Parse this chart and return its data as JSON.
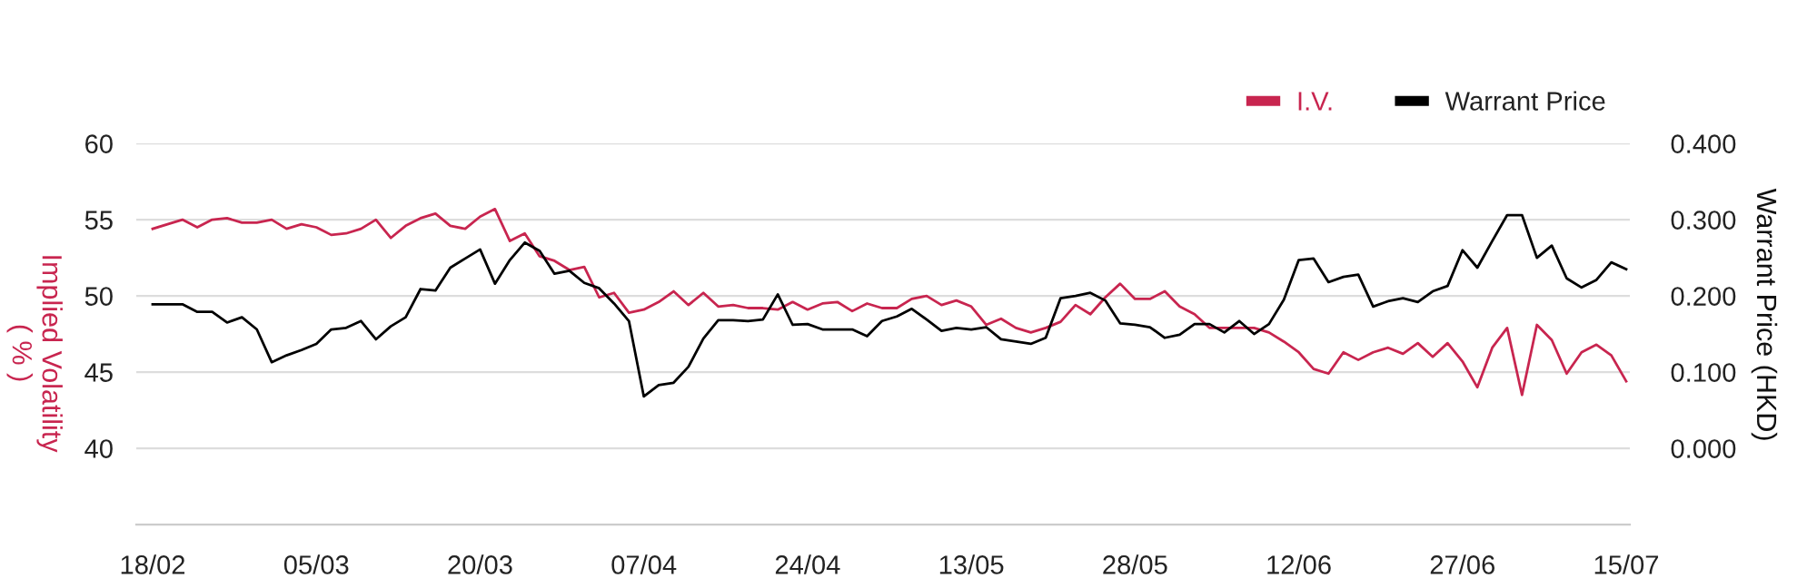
{
  "chart_data": {
    "type": "line",
    "categories": [
      "18/02",
      null,
      null,
      null,
      null,
      null,
      null,
      null,
      null,
      null,
      null,
      "05/03",
      null,
      null,
      null,
      null,
      null,
      null,
      null,
      null,
      null,
      null,
      "20/03",
      null,
      null,
      null,
      null,
      null,
      null,
      null,
      null,
      null,
      null,
      "07/04",
      null,
      null,
      null,
      null,
      null,
      null,
      null,
      null,
      null,
      null,
      "24/04",
      null,
      null,
      null,
      null,
      null,
      null,
      null,
      null,
      null,
      null,
      "13/05",
      null,
      null,
      null,
      null,
      null,
      null,
      null,
      null,
      null,
      null,
      "28/05",
      null,
      null,
      null,
      null,
      null,
      null,
      null,
      null,
      null,
      null,
      "12/06",
      null,
      null,
      null,
      null,
      null,
      null,
      null,
      null,
      null,
      null,
      "27/06",
      null,
      null,
      null,
      null,
      null,
      null,
      null,
      null,
      null,
      null,
      "15/07"
    ],
    "ylabel": "Implied Volatility\n( % )",
    "y2label": "Warrant Price (HKD)",
    "ylim": [
      35,
      60
    ],
    "yticks": [
      40,
      45,
      50,
      55,
      60
    ],
    "y2lim": [
      -0.1,
      0.4
    ],
    "y2ticks": [
      {
        "value": 0,
        "label": "0.000"
      },
      {
        "value": 0.1,
        "label": "0.100"
      },
      {
        "value": 0.2,
        "label": "0.200"
      },
      {
        "value": 0.3,
        "label": "0.300"
      },
      {
        "value": 0.4,
        "label": "0.400"
      }
    ],
    "grid": "y",
    "legend": "top right",
    "marker": "none",
    "line_style": "solid",
    "series": [
      {
        "name": "I.V.",
        "color": "#c8254f",
        "values": [
          54.4,
          54.7,
          55.0,
          54.5,
          55.0,
          55.1,
          54.8,
          54.8,
          55.0,
          54.4,
          54.7,
          54.5,
          54.0,
          54.1,
          54.4,
          55.0,
          53.8,
          54.6,
          55.1,
          55.4,
          54.6,
          54.4,
          55.2,
          55.7,
          53.6,
          54.1,
          52.6,
          52.3,
          51.7,
          51.9,
          49.9,
          50.2,
          48.9,
          49.1,
          49.6,
          50.3,
          49.4,
          50.2,
          49.3,
          49.4,
          49.2,
          49.2,
          49.1,
          49.6,
          49.1,
          49.5,
          49.6,
          49.0,
          49.5,
          49.2,
          49.2,
          49.8,
          50.0,
          49.4,
          49.7,
          49.3,
          48.1,
          48.5,
          47.9,
          47.6,
          47.9,
          48.3,
          49.4,
          48.8,
          49.9,
          50.8,
          49.8,
          49.8,
          50.3,
          49.3,
          48.8,
          47.9,
          47.9,
          47.9,
          47.9,
          47.6,
          47.0,
          46.3,
          45.2,
          44.9,
          46.3,
          45.8,
          46.3,
          46.6,
          46.2,
          46.9,
          46.0,
          46.9,
          45.7,
          44.0,
          46.6,
          47.9,
          43.5,
          48.1,
          47.1,
          44.9,
          46.3,
          46.8,
          46.1,
          44.4
        ]
      },
      {
        "name": "Warrant Price",
        "color": "#000000",
        "axis": "y2",
        "values": [
          0.189,
          0.189,
          0.189,
          0.179,
          0.179,
          0.165,
          0.172,
          0.156,
          0.113,
          0.122,
          0.129,
          0.137,
          0.156,
          0.158,
          0.167,
          0.143,
          0.16,
          0.172,
          0.209,
          0.207,
          0.237,
          0.249,
          0.261,
          0.216,
          0.247,
          0.27,
          0.259,
          0.229,
          0.233,
          0.217,
          0.21,
          0.19,
          0.167,
          0.068,
          0.083,
          0.086,
          0.107,
          0.144,
          0.168,
          0.168,
          0.167,
          0.169,
          0.202,
          0.162,
          0.163,
          0.156,
          0.156,
          0.156,
          0.147,
          0.167,
          0.173,
          0.183,
          0.169,
          0.154,
          0.158,
          0.156,
          0.159,
          0.143,
          0.14,
          0.137,
          0.145,
          0.197,
          0.2,
          0.204,
          0.194,
          0.164,
          0.162,
          0.159,
          0.145,
          0.149,
          0.163,
          0.163,
          0.152,
          0.167,
          0.15,
          0.163,
          0.195,
          0.247,
          0.249,
          0.218,
          0.225,
          0.228,
          0.186,
          0.193,
          0.197,
          0.192,
          0.206,
          0.213,
          0.26,
          0.237,
          0.272,
          0.306,
          0.306,
          0.25,
          0.266,
          0.223,
          0.211,
          0.221,
          0.244,
          0.235
        ]
      }
    ]
  }
}
